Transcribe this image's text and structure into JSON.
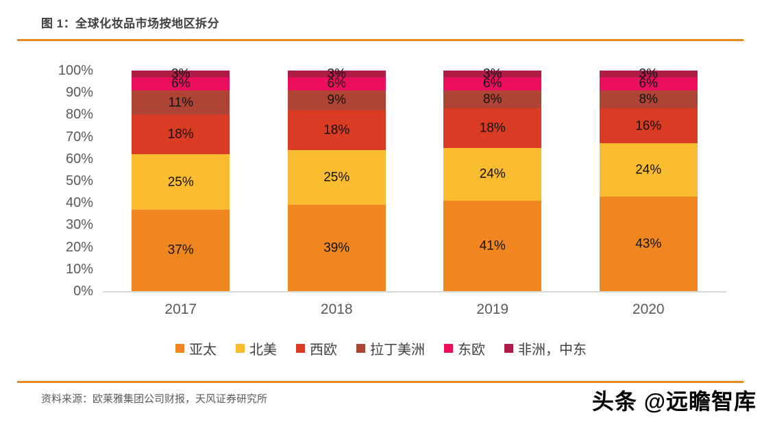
{
  "header": {
    "title": "图 1：全球化妆品市场按地区拆分"
  },
  "chart_data": {
    "type": "bar",
    "subtype": "stacked-percent",
    "title": "全球化妆品市场按地区拆分",
    "categories": [
      "2017",
      "2018",
      "2019",
      "2020"
    ],
    "series": [
      {
        "name": "亚太",
        "color": "#F0861F",
        "values": [
          37,
          39,
          41,
          43
        ]
      },
      {
        "name": "北美",
        "color": "#F9BC31",
        "values": [
          25,
          25,
          24,
          24
        ]
      },
      {
        "name": "西欧",
        "color": "#D93B23",
        "values": [
          18,
          18,
          18,
          16
        ]
      },
      {
        "name": "拉丁美洲",
        "color": "#AD4435",
        "values": [
          11,
          9,
          8,
          8
        ]
      },
      {
        "name": "东欧",
        "color": "#EC0E5C",
        "values": [
          6,
          6,
          6,
          6
        ]
      },
      {
        "name": "非洲，中东",
        "color": "#AF1C45",
        "values": [
          3,
          3,
          3,
          3
        ]
      }
    ],
    "value_suffix": "%",
    "xlabel": "",
    "ylabel": "",
    "ylim": [
      0,
      100
    ],
    "yticks": [
      "0%",
      "10%",
      "20%",
      "30%",
      "40%",
      "50%",
      "60%",
      "70%",
      "80%",
      "90%",
      "100%"
    ],
    "grid": false,
    "legend_position": "bottom",
    "axis_color": "#d9d9d9",
    "label_color": "#595959"
  },
  "footer": {
    "source": "资料来源：欧莱雅集团公司财报，天风证券研究所",
    "watermark": "头条 @远瞻智库"
  },
  "accent_color": "#e8861f"
}
